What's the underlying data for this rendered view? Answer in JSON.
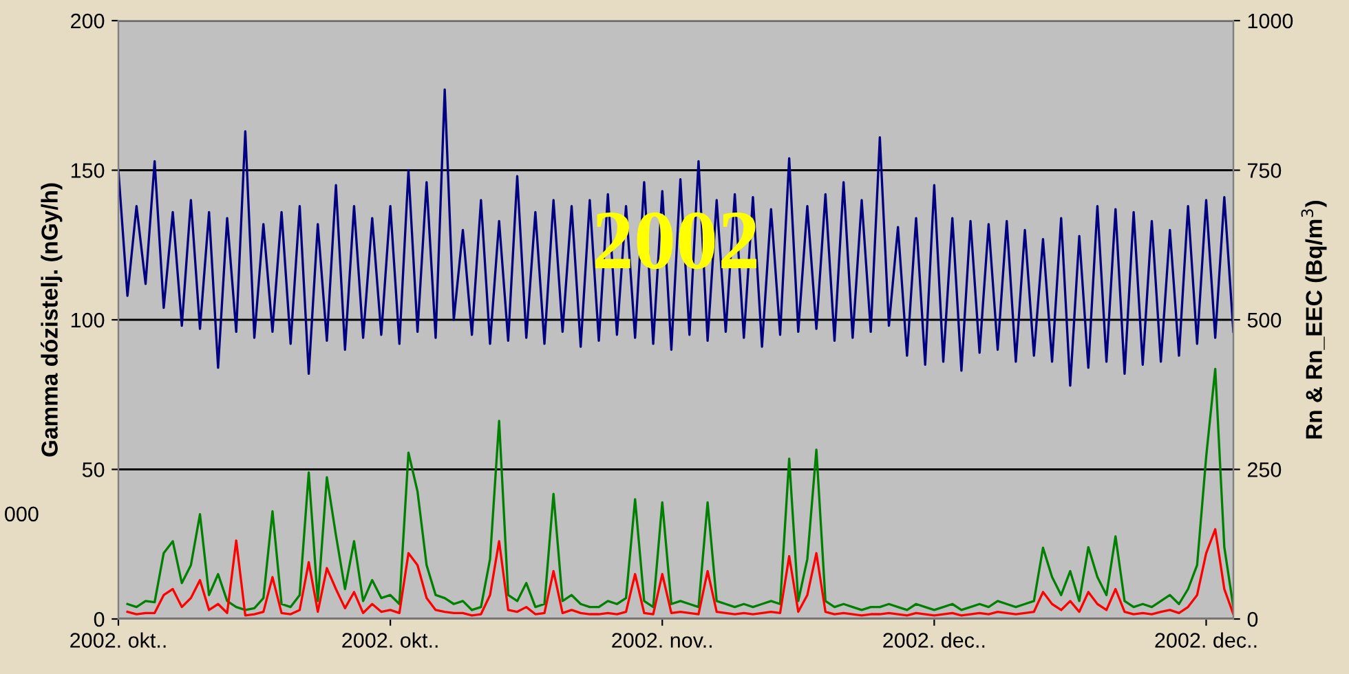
{
  "chart_data": {
    "type": "line",
    "ylabel": "Gamma dózistelj. (nGy/h)",
    "y2label": "Rn & Rn_EEC (Bq/m$^{3}$)",
    "annotations": [
      "2002",
      "000"
    ],
    "categories": [
      "2002. okt..",
      null,
      null,
      null,
      null,
      null,
      null,
      null,
      null,
      null,
      null,
      null,
      null,
      null,
      null,
      null,
      null,
      null,
      null,
      null,
      null,
      null,
      null,
      null,
      null,
      null,
      null,
      null,
      null,
      null,
      "2002. okt..",
      null,
      null,
      null,
      null,
      null,
      null,
      null,
      null,
      null,
      null,
      null,
      null,
      null,
      null,
      null,
      null,
      null,
      null,
      null,
      null,
      null,
      null,
      null,
      null,
      null,
      null,
      null,
      null,
      null,
      "2002. nov..",
      null,
      null,
      null,
      null,
      null,
      null,
      null,
      null,
      null,
      null,
      null,
      null,
      null,
      null,
      null,
      null,
      null,
      null,
      null,
      null,
      null,
      null,
      null,
      null,
      null,
      null,
      null,
      null,
      null,
      "2002. dec..",
      null,
      null,
      null,
      null,
      null,
      null,
      null,
      null,
      null,
      null,
      null,
      null,
      null,
      null,
      null,
      null,
      null,
      null,
      null,
      null,
      null,
      null,
      null,
      null,
      null,
      null,
      null,
      null,
      null,
      "2002. dec..",
      null,
      null,
      null
    ],
    "series": [
      {
        "color": "#000080",
        "values": [
          150,
          108,
          138,
          112,
          153,
          104,
          136,
          98,
          140,
          97,
          136,
          84,
          134,
          96,
          163,
          94,
          132,
          96,
          136,
          92,
          138,
          82,
          132,
          93,
          145,
          90,
          138,
          94,
          134,
          95,
          138,
          92,
          150,
          96,
          146,
          94,
          177,
          100,
          130,
          95,
          140,
          92,
          133,
          93,
          148,
          94,
          136,
          92,
          140,
          96,
          138,
          91,
          140,
          93,
          142,
          95,
          138,
          94,
          146,
          92,
          143,
          90,
          147,
          95,
          153,
          93,
          140,
          96,
          142,
          94,
          141,
          91,
          137,
          95,
          154,
          96,
          138,
          97,
          142,
          93,
          146,
          94,
          140,
          96,
          161,
          98,
          131,
          88,
          134,
          85,
          145,
          86,
          134,
          83,
          133,
          89,
          132,
          90,
          133,
          86,
          130,
          88,
          127,
          86,
          134,
          78,
          128,
          84,
          138,
          86,
          137,
          82,
          136,
          85,
          133,
          86,
          130,
          88,
          138,
          92,
          140,
          94,
          141,
          96
        ]
      },
      {
        "color": "#008000",
        "axis": "y2",
        "values": [
          null,
          25,
          20,
          30,
          28,
          110,
          130,
          60,
          90,
          175,
          40,
          75,
          30,
          20,
          15,
          18,
          35,
          180,
          25,
          20,
          40,
          245,
          30,
          237,
          140,
          50,
          130,
          30,
          65,
          35,
          40,
          25,
          278,
          213,
          90,
          40,
          35,
          25,
          30,
          15,
          20,
          100,
          331,
          40,
          30,
          60,
          20,
          25,
          209,
          30,
          40,
          25,
          20,
          20,
          30,
          25,
          35,
          200,
          30,
          20,
          195,
          25,
          30,
          25,
          20,
          195,
          30,
          25,
          20,
          25,
          20,
          25,
          30,
          25,
          268,
          30,
          100,
          283,
          30,
          20,
          25,
          20,
          15,
          20,
          20,
          25,
          20,
          15,
          25,
          20,
          15,
          20,
          25,
          15,
          20,
          25,
          20,
          30,
          25,
          20,
          25,
          30,
          119,
          70,
          40,
          80,
          30,
          120,
          70,
          40,
          138,
          30,
          20,
          25,
          20,
          30,
          40,
          25,
          50,
          90,
          271,
          418,
          120,
          20
        ]
      },
      {
        "color": "#ff0000",
        "axis": "y2",
        "values": [
          null,
          12,
          8,
          10,
          10,
          40,
          50,
          20,
          35,
          65,
          15,
          25,
          10,
          131,
          6,
          8,
          12,
          70,
          10,
          8,
          15,
          95,
          12,
          85,
          50,
          18,
          45,
          10,
          25,
          12,
          15,
          10,
          110,
          90,
          35,
          15,
          12,
          10,
          10,
          6,
          8,
          40,
          130,
          15,
          12,
          20,
          8,
          10,
          80,
          10,
          15,
          10,
          8,
          8,
          10,
          8,
          12,
          75,
          10,
          8,
          75,
          10,
          12,
          10,
          8,
          80,
          12,
          10,
          8,
          10,
          8,
          10,
          12,
          10,
          105,
          12,
          40,
          110,
          12,
          8,
          10,
          8,
          6,
          8,
          8,
          10,
          8,
          6,
          10,
          8,
          6,
          8,
          10,
          6,
          8,
          10,
          8,
          12,
          10,
          8,
          10,
          12,
          45,
          25,
          15,
          30,
          12,
          45,
          25,
          15,
          50,
          12,
          8,
          10,
          8,
          12,
          15,
          10,
          20,
          40,
          110,
          150,
          50,
          8
        ]
      }
    ],
    "ylim": [
      0,
      200
    ],
    "yticks": [
      0,
      50,
      100,
      150,
      200
    ],
    "y2lim": [
      0,
      1000
    ],
    "y2ticks": [
      0,
      250,
      500,
      750,
      1000
    ],
    "grid": "y"
  }
}
